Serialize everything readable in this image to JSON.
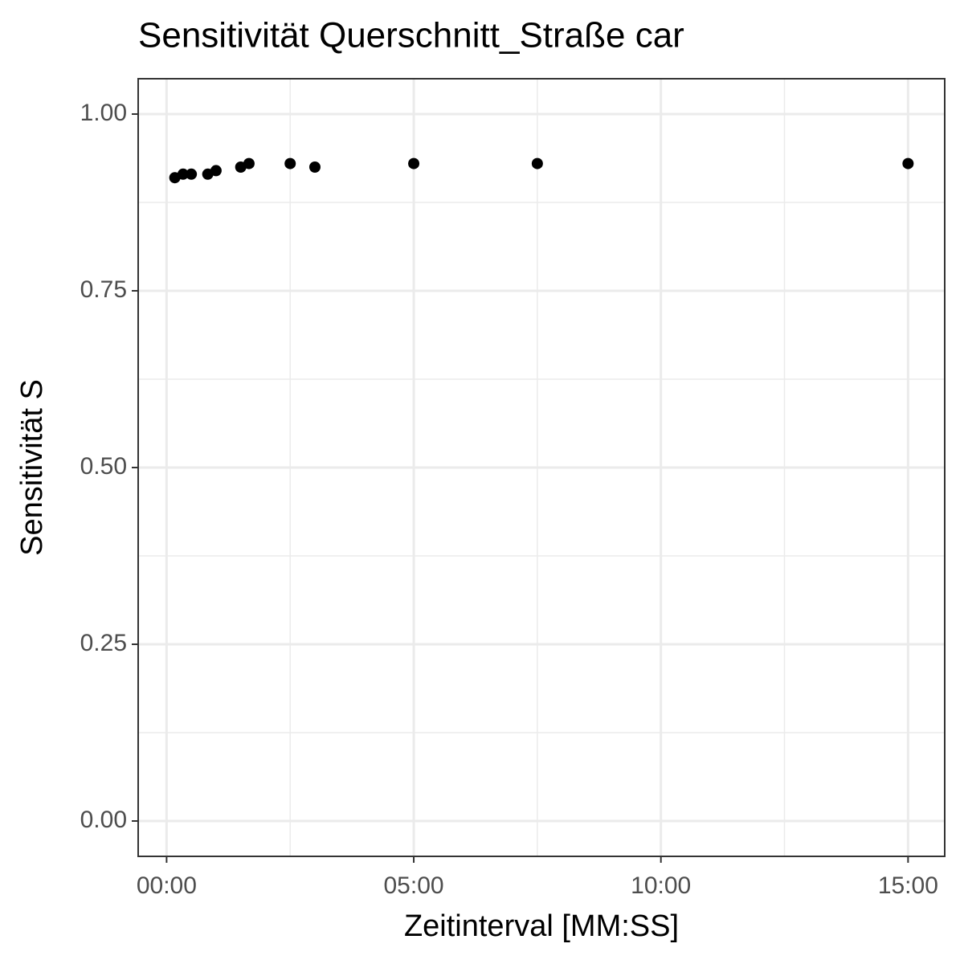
{
  "chart_data": {
    "type": "scatter",
    "title": "Sensitivität Querschnitt_Straße car",
    "x_label": "Zeitinterval [MM:SS]",
    "y_label": "Sensitivität S",
    "x": [
      10,
      20,
      30,
      50,
      60,
      90,
      100,
      150,
      180,
      300,
      450,
      900
    ],
    "values": [
      0.91,
      0.915,
      0.915,
      0.915,
      0.92,
      0.925,
      0.93,
      0.93,
      0.925,
      0.93,
      0.93,
      0.93
    ],
    "color": "#000000",
    "xlim": [
      -34.5,
      944.5
    ],
    "xticks": [
      {
        "value": 0,
        "label": "00:00"
      },
      {
        "value": 300,
        "label": "05:00"
      },
      {
        "value": 600,
        "label": "10:00"
      },
      {
        "value": 900,
        "label": "15:00"
      }
    ],
    "x_minor_ticks": [
      150,
      450,
      750
    ],
    "ylim": [
      -0.05,
      1.05
    ],
    "yticks": [
      {
        "value": 0,
        "label": "0.00"
      },
      {
        "value": 0.25,
        "label": "0.25"
      },
      {
        "value": 0.5,
        "label": "0.50"
      },
      {
        "value": 0.75,
        "label": "0.75"
      },
      {
        "value": 1,
        "label": "1.00"
      }
    ],
    "y_minor_ticks": [
      0.125,
      0.375,
      0.625,
      0.875
    ],
    "grid": true
  }
}
